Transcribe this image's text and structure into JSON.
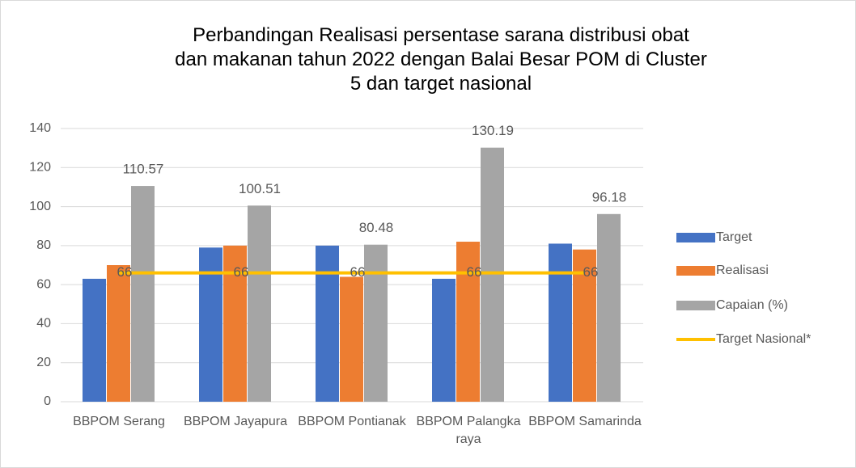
{
  "chart_data": {
    "type": "bar",
    "title": "Perbandingan Realisasi persentase sarana distribusi obat dan makanan tahun 2022 dengan Balai Besar POM di Cluster 5 dan target nasional",
    "categories": [
      "BBPOM Serang",
      "BBPOM Jayapura",
      "BBPOM Pontianak",
      "BBPOM Palangka raya",
      "BBPOM Samarinda"
    ],
    "series": [
      {
        "name": "Target",
        "type": "bar",
        "color": "#4472c4",
        "values": [
          63,
          79,
          80,
          63,
          81
        ]
      },
      {
        "name": "Realisasi",
        "type": "bar",
        "color": "#ed7d31",
        "values": [
          70,
          80,
          64,
          82,
          78
        ]
      },
      {
        "name": "Capaian (%)",
        "type": "bar",
        "color": "#a5a5a5",
        "values": [
          110.57,
          100.51,
          80.48,
          130.19,
          96.18
        ],
        "data_labels": true
      },
      {
        "name": "Target Nasional*",
        "type": "line",
        "color": "#ffc000",
        "values": [
          66,
          66,
          66,
          66,
          66
        ],
        "data_labels": true
      }
    ],
    "ylim": [
      0,
      140
    ],
    "yticks": [
      0,
      20,
      40,
      60,
      80,
      100,
      120,
      140
    ],
    "grid": true,
    "legend": "right"
  }
}
